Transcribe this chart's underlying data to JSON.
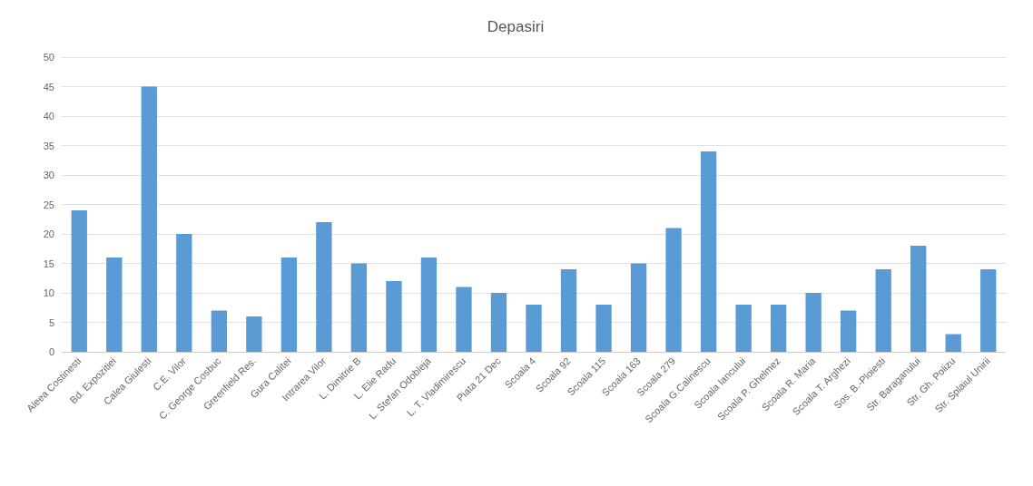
{
  "chart_data": {
    "type": "bar",
    "title": "Depasiri",
    "categories": [
      "Aleea Costinesti",
      "Bd. Expozitiei",
      "Calea Giulesti",
      "C.E. Vilor",
      "C. George Cosbuc",
      "Greenfield Res.",
      "Gura Calitei",
      "Intrarea Vilor",
      "L. Dimitrie B",
      "L. Elie Radu",
      "L. Stefan Odobleja",
      "L. T. Vladimirescu",
      "Piata 21 Dec",
      "Scoala 4",
      "Scoala 92",
      "Scoala 115",
      "Scoala 163",
      "Scoala 279",
      "Scoala G.Calinescu",
      "Scoala Iancului",
      "Scoala P. Ghelmez",
      "Scoala R. Maria",
      "Scoala T. Arghezi",
      "Sos. B.-Ploiesti",
      "Str. Baraganului",
      "Str. Gh. Polizu",
      "Str. Splaiul Unirii"
    ],
    "values": [
      24,
      16,
      45,
      20,
      7,
      6,
      16,
      22,
      15,
      12,
      16,
      11,
      10,
      8,
      14,
      8,
      15,
      21,
      34,
      8,
      8,
      10,
      7,
      14,
      18,
      3,
      14
    ],
    "color": "#5b9bd5",
    "ylim": [
      0,
      50
    ],
    "yticks": [
      0,
      5,
      10,
      15,
      20,
      25,
      30,
      35,
      40,
      45,
      50
    ],
    "grid": "y"
  }
}
